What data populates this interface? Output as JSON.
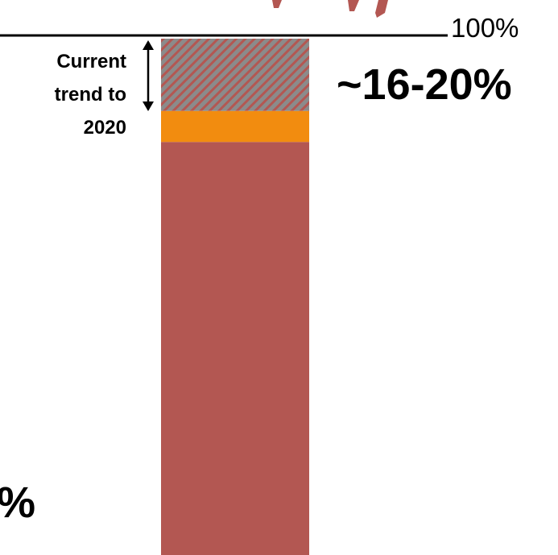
{
  "colors": {
    "main_segment": "#b35752",
    "middle_segment": "#f28c0f",
    "hatched_segment_fill": "#8b8b8b",
    "hatched_segment_stripe": "#b35752",
    "title_text": "#b35752",
    "axis_line": "#000000"
  },
  "chart_data": {
    "type": "bar",
    "orientation": "vertical",
    "stacked": true,
    "ylim": [
      0,
      100
    ],
    "title": "",
    "top_line_label": "100%",
    "bracket_label": "Current trend to 2020",
    "bracket_label_lines": [
      "Current",
      "trend to",
      "2020"
    ],
    "annotation": "~16-20%",
    "partial_left_label": "%",
    "series": [
      {
        "name": "",
        "value": 80,
        "color": "#b35752",
        "pattern": "solid"
      },
      {
        "name": "",
        "value": 6,
        "color": "#f28c0f",
        "pattern": "solid"
      },
      {
        "name": "",
        "value": 14,
        "color": "#8b8b8b",
        "pattern": "hatched"
      }
    ]
  }
}
